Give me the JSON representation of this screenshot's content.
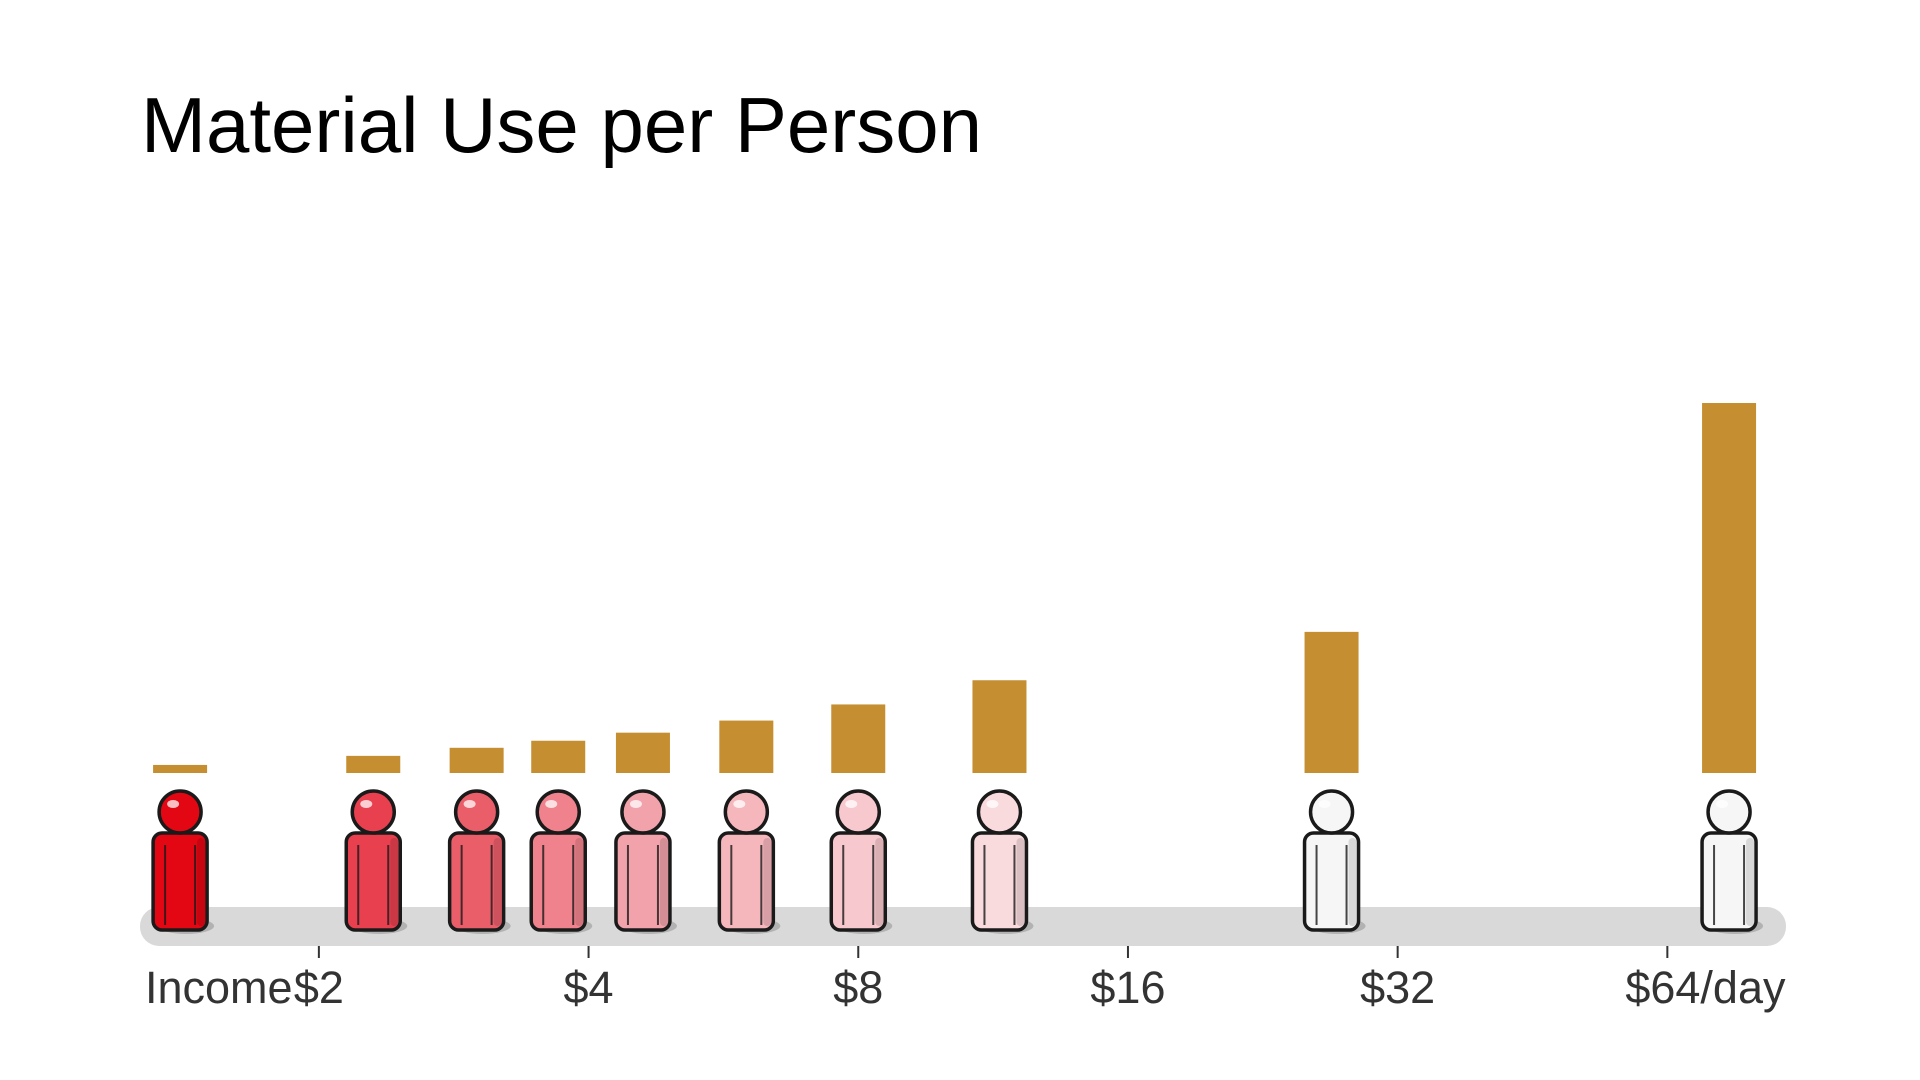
{
  "chart_data": {
    "type": "bar",
    "title": "Material Use per Person",
    "xlabel": "Income",
    "x_scale": "log2",
    "xlim": [
      1.25,
      90
    ],
    "x_ticks": [
      {
        "value": 2,
        "label": "$2"
      },
      {
        "value": 4,
        "label": "$4"
      },
      {
        "value": 8,
        "label": "$8"
      },
      {
        "value": 16,
        "label": "$16"
      },
      {
        "value": 32,
        "label": "$32"
      },
      {
        "value": 64,
        "label": "$64/day"
      }
    ],
    "ylim": [
      0,
      370
    ],
    "grid": false,
    "legend": "none",
    "points": [
      {
        "income": 1.4,
        "value": 8,
        "color": "#e30613"
      },
      {
        "income": 2.3,
        "value": 17,
        "color": "#e8404f"
      },
      {
        "income": 3.0,
        "value": 25,
        "color": "#ea5e6a"
      },
      {
        "income": 3.7,
        "value": 32,
        "color": "#ef828c"
      },
      {
        "income": 4.6,
        "value": 40,
        "color": "#f2a2aa"
      },
      {
        "income": 6.0,
        "value": 52,
        "color": "#f5b6bc"
      },
      {
        "income": 8.0,
        "value": 68,
        "color": "#f7c8cd"
      },
      {
        "income": 11.5,
        "value": 92,
        "color": "#f9dadd"
      },
      {
        "income": 27,
        "value": 140,
        "color": "#f6f6f6"
      },
      {
        "income": 75,
        "value": 367,
        "color": "#f6f6f6"
      }
    ],
    "bar_color": "#c48e31",
    "baseline_color": "#d9d9d9"
  }
}
